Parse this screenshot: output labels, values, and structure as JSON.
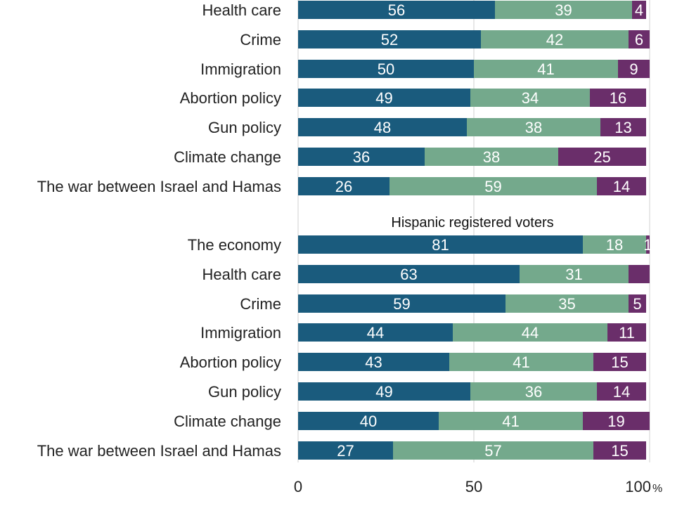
{
  "chart_data": {
    "type": "bar",
    "orientation": "horizontal",
    "stacked": true,
    "xlim": [
      0,
      100
    ],
    "xticks": [
      "0",
      "50",
      "100"
    ],
    "unit": "%",
    "grid": true,
    "colors": [
      "#1a5b7d",
      "#74a98c",
      "#6a2e6a"
    ],
    "groups": [
      {
        "title": "",
        "categories": [
          "Health care",
          "Crime",
          "Immigration",
          "Abortion policy",
          "Gun policy",
          "Climate change",
          "The war between Israel and Hamas"
        ],
        "series": [
          {
            "values": [
              56,
              52,
              50,
              49,
              48,
              36,
              26
            ]
          },
          {
            "values": [
              39,
              42,
              41,
              34,
              38,
              38,
              59
            ]
          },
          {
            "values": [
              4,
              6,
              9,
              16,
              13,
              25,
              14
            ]
          }
        ]
      },
      {
        "title": "Hispanic registered voters",
        "categories": [
          "The economy",
          "Health care",
          "Crime",
          "Immigration",
          "Abortion policy",
          "Gun policy",
          "Climate change",
          "The war between Israel and Hamas"
        ],
        "series": [
          {
            "values": [
              81,
              63,
              59,
              44,
              43,
              49,
              40,
              27
            ]
          },
          {
            "values": [
              18,
              31,
              35,
              44,
              41,
              36,
              41,
              57
            ]
          },
          {
            "values": [
              1,
              6,
              5,
              11,
              15,
              14,
              19,
              15
            ]
          }
        ],
        "hidden_labels": [
          [],
          [],
          [
            1
          ]
        ]
      }
    ]
  }
}
